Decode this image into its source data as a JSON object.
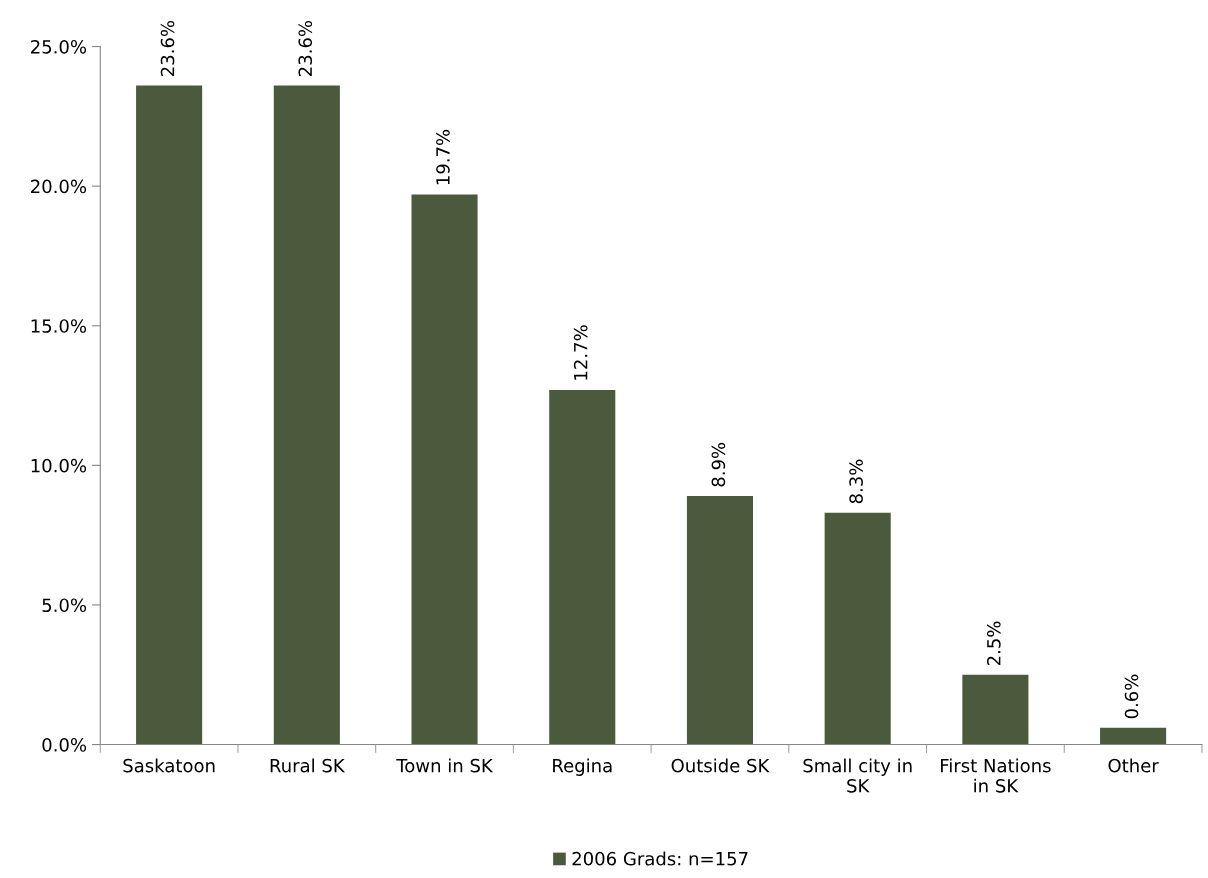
{
  "chart_data": {
    "type": "bar",
    "categories": [
      "Saskatoon",
      "Rural SK",
      "Town in SK",
      "Regina",
      "Outside SK",
      "Small city in SK",
      "First Nations in SK",
      "Other"
    ],
    "series": [
      {
        "name": "2006 Grads: n=157",
        "color": "#4b5a3c",
        "values": [
          23.6,
          23.6,
          19.7,
          12.7,
          8.9,
          8.3,
          2.5,
          0.6
        ],
        "value_labels": [
          "23.6%",
          "23.6%",
          "19.7%",
          "12.7%",
          "8.9%",
          "8.3%",
          "2.5%",
          "0.6%"
        ]
      }
    ],
    "ylim": [
      0,
      25
    ],
    "yticks": [
      {
        "value": 0,
        "label": "0.0%"
      },
      {
        "value": 5,
        "label": "5.0%"
      },
      {
        "value": 10,
        "label": "10.0%"
      },
      {
        "value": 15,
        "label": "15.0%"
      },
      {
        "value": 20,
        "label": "20.0%"
      },
      {
        "value": 25,
        "label": "25.0%"
      }
    ],
    "grid": false,
    "legend": "bottom"
  }
}
